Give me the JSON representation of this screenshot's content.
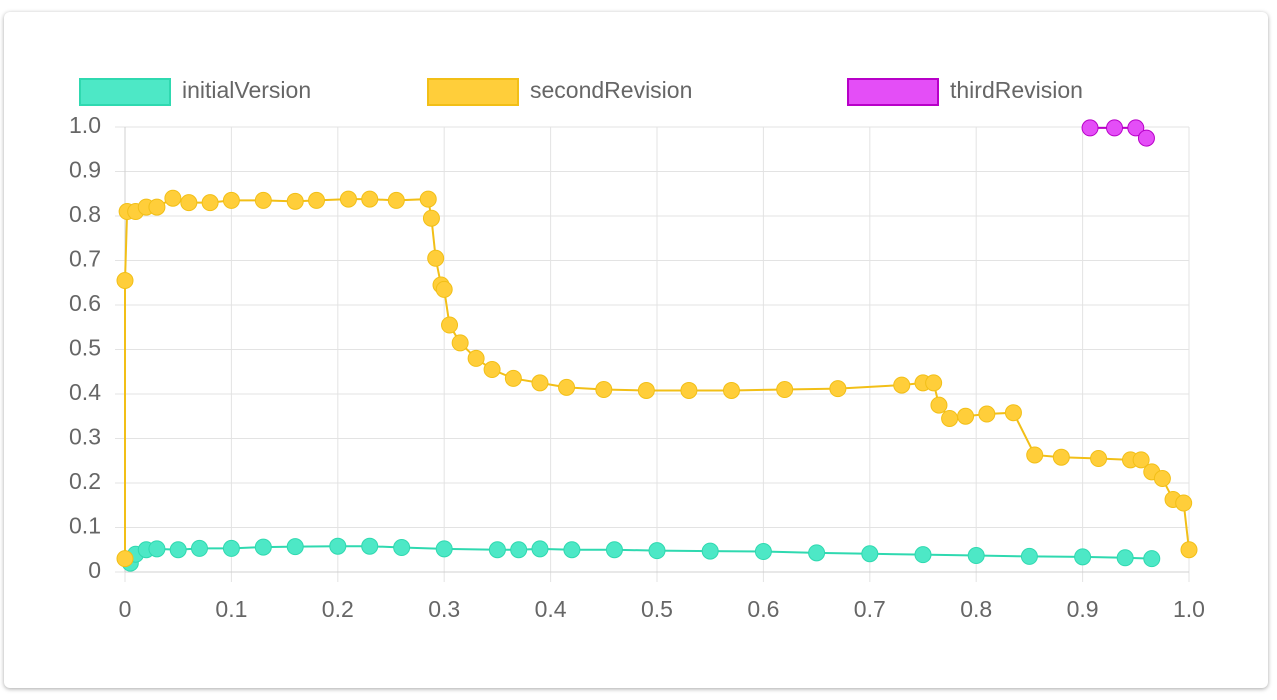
{
  "chart_data": {
    "type": "line",
    "grid": true,
    "xlim": [
      0,
      1
    ],
    "ylim": [
      0,
      1
    ],
    "xticks": [
      0,
      0.1,
      0.2,
      0.3,
      0.4,
      0.5,
      0.6,
      0.7,
      0.8,
      0.9,
      {
        "value": 1,
        "label": "1.0"
      }
    ],
    "yticks": [
      0,
      0.1,
      0.2,
      0.3,
      0.4,
      0.5,
      0.6,
      0.7,
      0.8,
      0.9,
      {
        "value": 1,
        "label": "1.0"
      }
    ],
    "series": [
      {
        "name": "initialVersion",
        "color": "#4de8c6",
        "border": "#2fd9b0",
        "x": [
          0.005,
          0.01,
          0.02,
          0.03,
          0.05,
          0.07,
          0.1,
          0.13,
          0.16,
          0.2,
          0.23,
          0.26,
          0.3,
          0.35,
          0.37,
          0.39,
          0.42,
          0.46,
          0.5,
          0.55,
          0.6,
          0.65,
          0.7,
          0.75,
          0.8,
          0.85,
          0.9,
          0.94,
          0.965
        ],
        "values": [
          0.02,
          0.04,
          0.05,
          0.052,
          0.05,
          0.053,
          0.053,
          0.056,
          0.057,
          0.058,
          0.058,
          0.055,
          0.052,
          0.05,
          0.05,
          0.052,
          0.05,
          0.05,
          0.048,
          0.047,
          0.046,
          0.043,
          0.041,
          0.039,
          0.037,
          0.035,
          0.034,
          0.032,
          0.03
        ]
      },
      {
        "name": "secondRevision",
        "color": "#ffce3a",
        "border": "#f2bf17",
        "x": [
          0,
          0,
          0.002,
          0.01,
          0.02,
          0.03,
          0.045,
          0.06,
          0.08,
          0.1,
          0.13,
          0.16,
          0.18,
          0.21,
          0.23,
          0.255,
          0.285,
          0.288,
          0.292,
          0.297,
          0.3,
          0.305,
          0.315,
          0.33,
          0.345,
          0.365,
          0.39,
          0.415,
          0.45,
          0.49,
          0.53,
          0.57,
          0.62,
          0.67,
          0.73,
          0.75,
          0.76,
          0.765,
          0.775,
          0.79,
          0.81,
          0.835,
          0.855,
          0.88,
          0.915,
          0.945,
          0.955,
          0.965,
          0.975,
          0.985,
          0.995,
          1
        ],
        "values": [
          0.03,
          0.655,
          0.81,
          0.81,
          0.82,
          0.82,
          0.84,
          0.83,
          0.83,
          0.835,
          0.835,
          0.833,
          0.835,
          0.838,
          0.838,
          0.835,
          0.838,
          0.795,
          0.705,
          0.645,
          0.635,
          0.555,
          0.515,
          0.48,
          0.455,
          0.435,
          0.425,
          0.415,
          0.41,
          0.408,
          0.408,
          0.408,
          0.41,
          0.412,
          0.42,
          0.425,
          0.425,
          0.375,
          0.345,
          0.35,
          0.355,
          0.358,
          0.263,
          0.258,
          0.255,
          0.252,
          0.252,
          0.225,
          0.21,
          0.163,
          0.155,
          0.05
        ]
      },
      {
        "name": "thirdRevision",
        "color": "#e44ef7",
        "border": "#b800c8",
        "x": [
          0.907,
          0.93,
          0.95,
          0.96
        ],
        "values": [
          0.998,
          0.998,
          0.998,
          0.975
        ]
      }
    ]
  }
}
